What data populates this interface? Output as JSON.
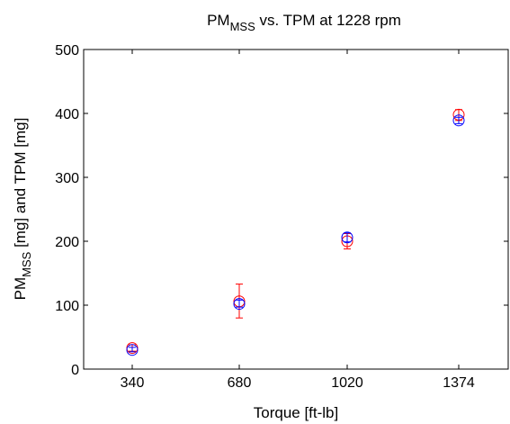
{
  "chart_data": {
    "type": "scatter",
    "title_main": "PM",
    "title_sub": "MSS",
    "title_rest": " vs. TPM at 1228 rpm",
    "xlabel": "Torque [ft-lb]",
    "ylabel_main": "PM",
    "ylabel_sub": "MSS",
    "ylabel_rest": " [mg] and TPM [mg]",
    "categories": [
      "340",
      "680",
      "1020",
      "1374"
    ],
    "ylim": [
      0,
      500
    ],
    "yticks": [
      0,
      100,
      200,
      300,
      400,
      500
    ],
    "grid": false,
    "series": [
      {
        "color": "#ff0000",
        "marker": "circle-with-errorbars",
        "values": [
          33,
          106,
          200,
          398
        ],
        "error_low": [
          28,
          80,
          188,
          389
        ],
        "error_high": [
          38,
          133,
          212,
          406
        ]
      },
      {
        "color": "#0000ff",
        "marker": "circle-with-errorbars",
        "values": [
          30,
          102,
          206,
          389
        ],
        "error_low": [
          27,
          97,
          199,
          384
        ],
        "error_high": [
          34,
          108,
          213,
          394
        ]
      }
    ]
  }
}
